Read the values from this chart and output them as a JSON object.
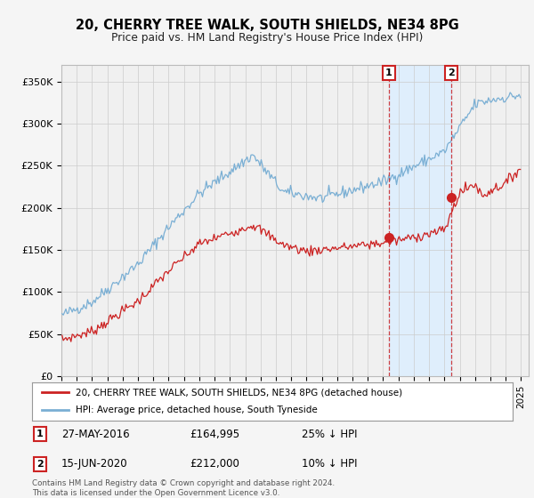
{
  "title": "20, CHERRY TREE WALK, SOUTH SHIELDS, NE34 8PG",
  "subtitle": "Price paid vs. HM Land Registry's House Price Index (HPI)",
  "ylim": [
    0,
    370000
  ],
  "yticks": [
    0,
    50000,
    100000,
    150000,
    200000,
    250000,
    300000,
    350000
  ],
  "ytick_labels": [
    "£0",
    "£50K",
    "£100K",
    "£150K",
    "£200K",
    "£250K",
    "£300K",
    "£350K"
  ],
  "xlim_min": 1995.0,
  "xlim_max": 2025.5,
  "hpi_color": "#7aafd4",
  "price_color": "#cc2222",
  "shade_color": "#ddeeff",
  "marker1_x": 2016.37,
  "marker1_y": 164995,
  "marker2_x": 2020.45,
  "marker2_y": 212000,
  "legend_line1": "20, CHERRY TREE WALK, SOUTH SHIELDS, NE34 8PG (detached house)",
  "legend_line2": "HPI: Average price, detached house, South Tyneside",
  "annotation1_date": "27-MAY-2016",
  "annotation1_price": "£164,995",
  "annotation1_hpi": "25% ↓ HPI",
  "annotation2_date": "15-JUN-2020",
  "annotation2_price": "£212,000",
  "annotation2_hpi": "10% ↓ HPI",
  "footer": "Contains HM Land Registry data © Crown copyright and database right 2024.\nThis data is licensed under the Open Government Licence v3.0.",
  "bg_color": "#f5f5f5",
  "plot_bg_color": "#f0f0f0"
}
